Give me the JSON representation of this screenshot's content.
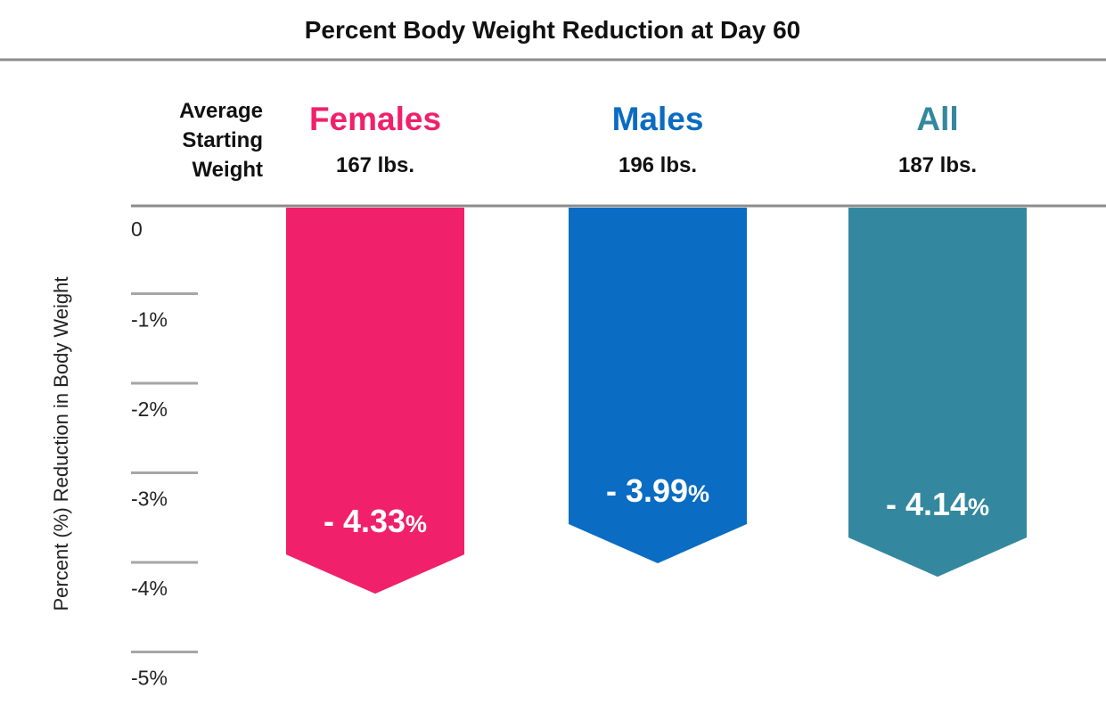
{
  "chart_data": {
    "type": "bar",
    "title": "Percent Body Weight Reduction at Day 60",
    "ylabel": "Percent (%) Reduction in Body Weight",
    "ylim": [
      -5,
      0
    ],
    "yticks": [
      {
        "value": 0,
        "label": "0"
      },
      {
        "value": -1,
        "label": "-1%"
      },
      {
        "value": -2,
        "label": "-2%"
      },
      {
        "value": -3,
        "label": "-3%"
      },
      {
        "value": -4,
        "label": "-4%"
      },
      {
        "value": -5,
        "label": "-5%"
      }
    ],
    "starting_weight_label": [
      "Average",
      "Starting",
      "Weight"
    ],
    "series": [
      {
        "name": "Females",
        "value": -4.33,
        "label_num": "- 4.33",
        "label_pct": "%",
        "starting_weight": "167 lbs.",
        "color": "#f0206a"
      },
      {
        "name": "Males",
        "value": -3.99,
        "label_num": "- 3.99",
        "label_pct": "%",
        "starting_weight": "196 lbs.",
        "color": "#0a6cc2"
      },
      {
        "name": "All",
        "value": -4.14,
        "label_num": "- 4.14",
        "label_pct": "%",
        "starting_weight": "187 lbs.",
        "color": "#33889f"
      }
    ]
  }
}
